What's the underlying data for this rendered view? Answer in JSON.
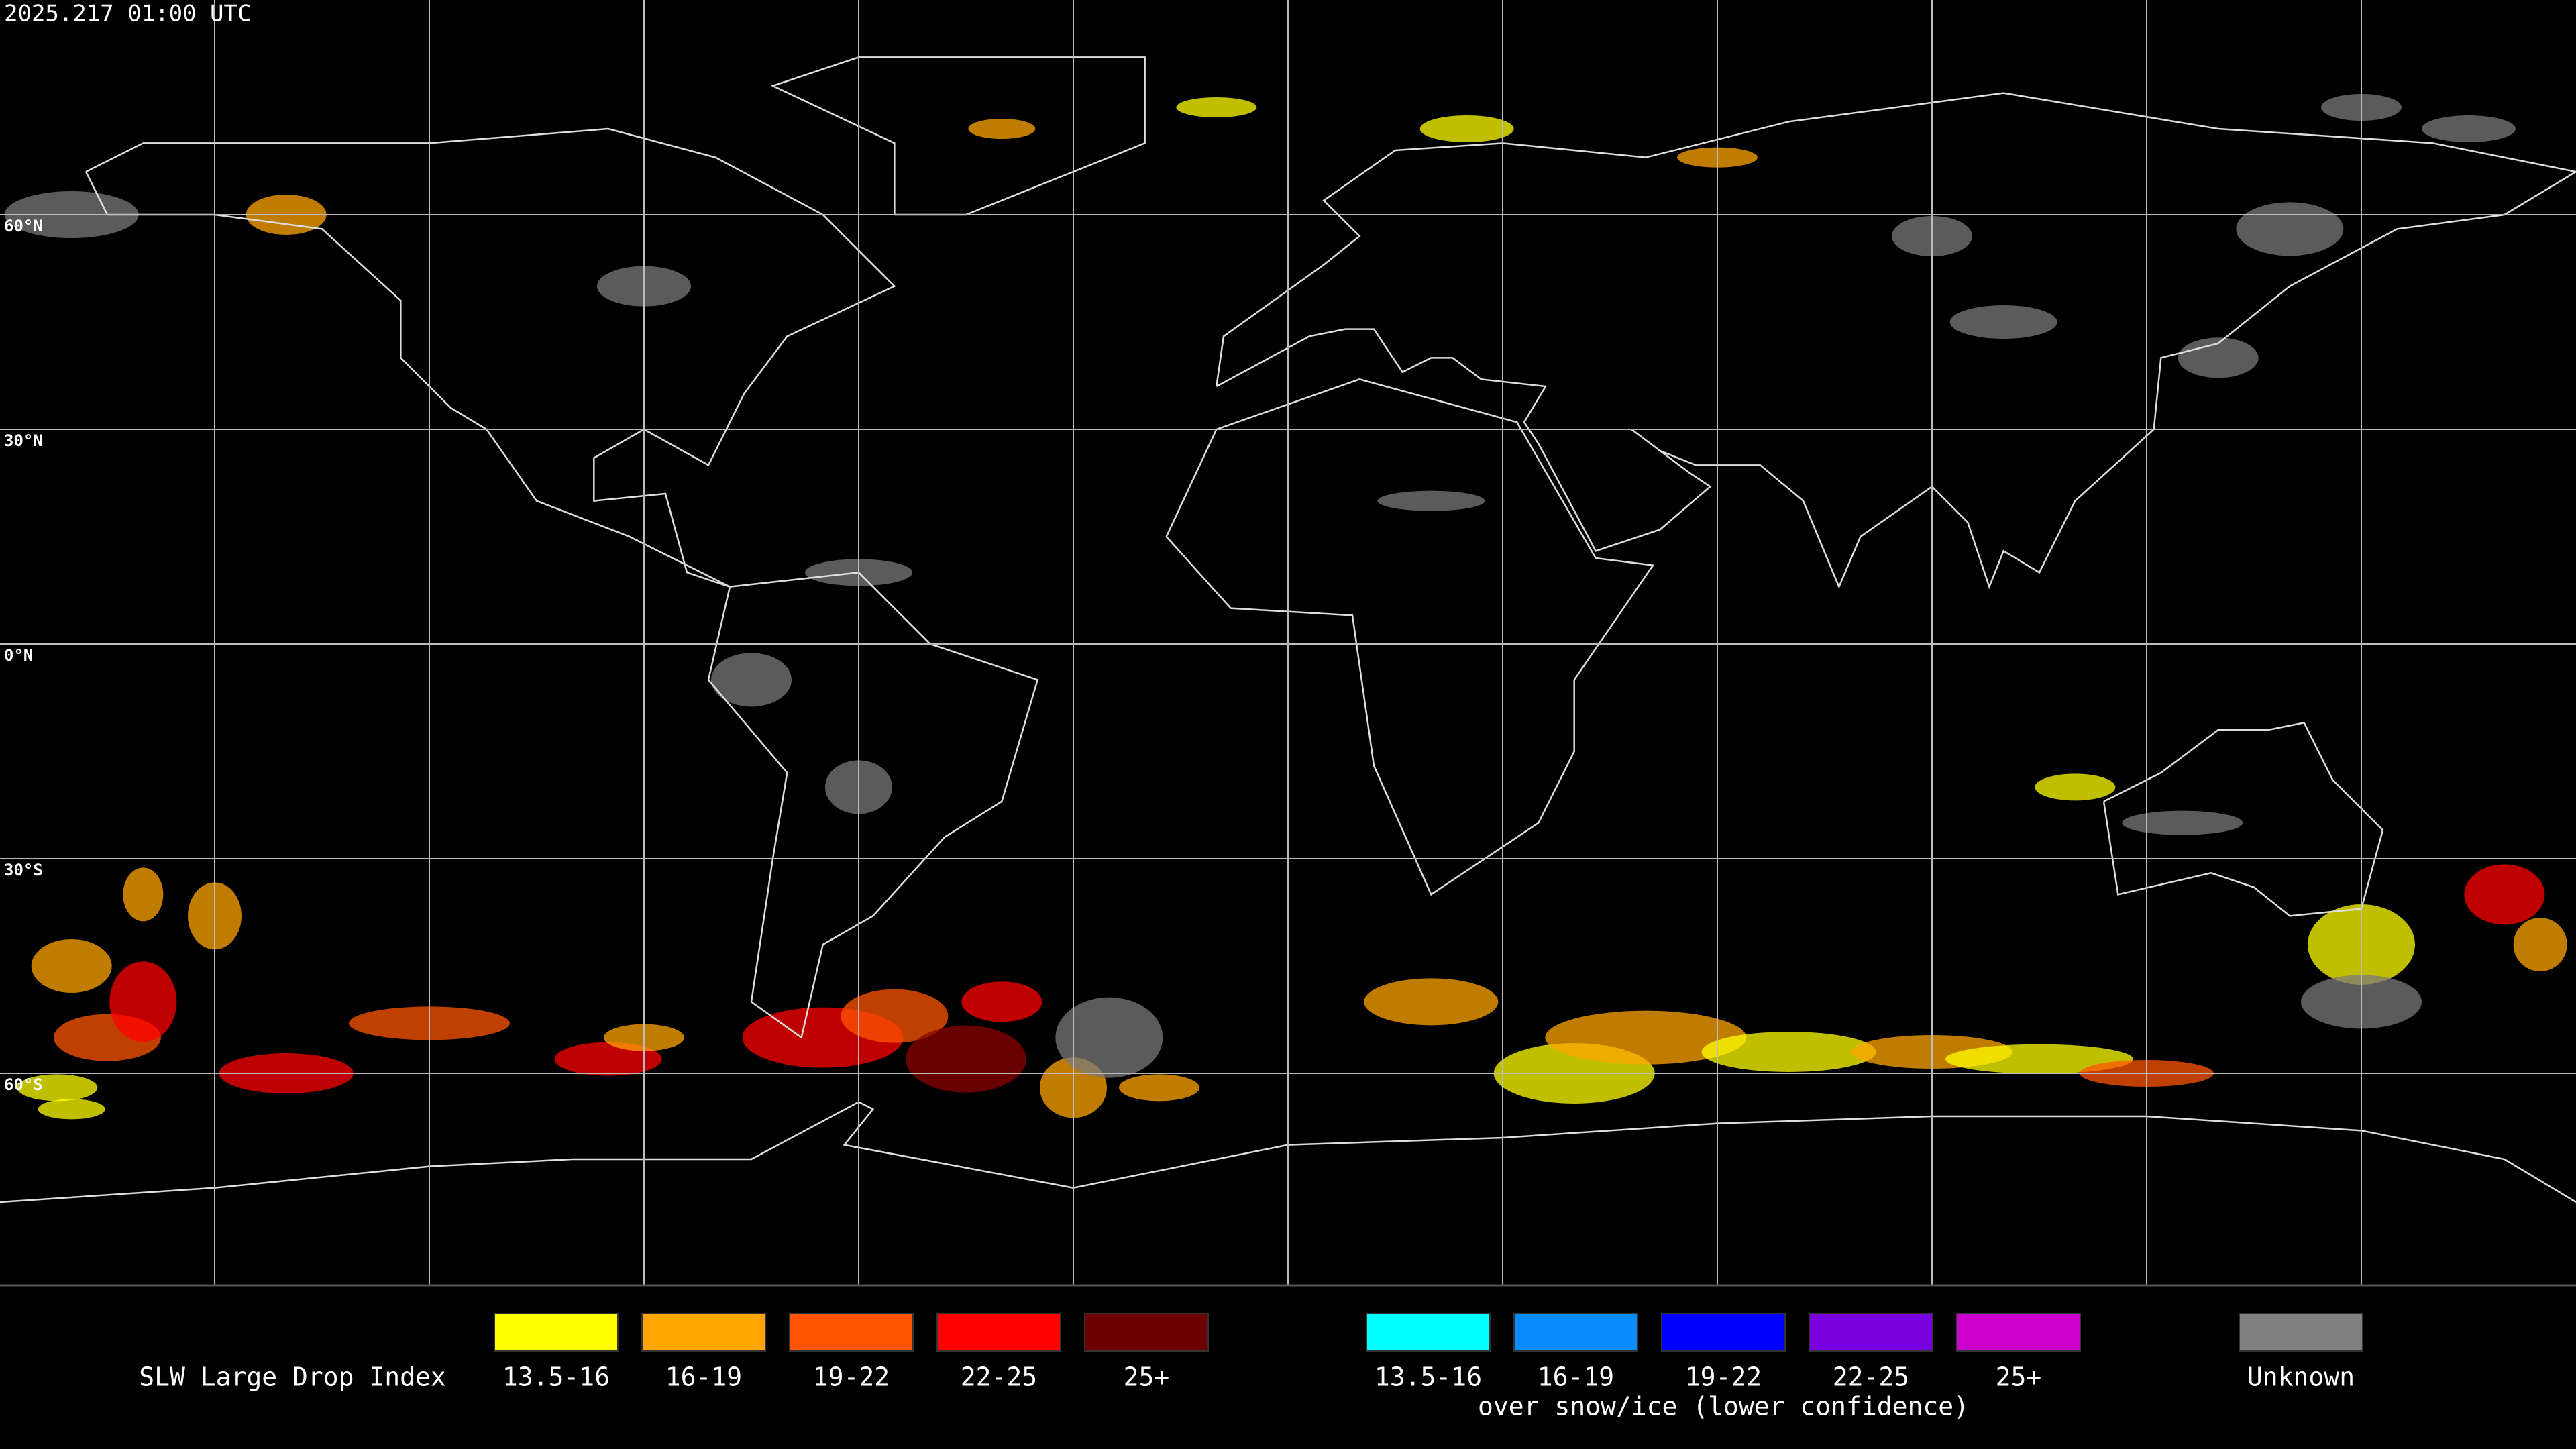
{
  "header": {
    "timestamp": "2025.217 01:00 UTC"
  },
  "map": {
    "latitude_labels": [
      "60°N",
      "30°N",
      "0°N",
      "30°S",
      "60°S"
    ]
  },
  "legend": {
    "title": "SLW Large Drop Index",
    "classes": [
      {
        "label": "13.5-16",
        "color": "#ffff00"
      },
      {
        "label": "16-19",
        "color": "#ffa500"
      },
      {
        "label": "19-22",
        "color": "#ff5500"
      },
      {
        "label": "22-25",
        "color": "#ff0000"
      },
      {
        "label": "25+",
        "color": "#6b0000"
      }
    ],
    "snow_ice_classes": [
      {
        "label": "13.5-16",
        "color": "#00ffff"
      },
      {
        "label": "16-19",
        "color": "#0a8cff"
      },
      {
        "label": "19-22",
        "color": "#0000ff"
      },
      {
        "label": "22-25",
        "color": "#7a00e0"
      },
      {
        "label": "25+",
        "color": "#cc00cc"
      }
    ],
    "snow_ice_caption": "over snow/ice (lower confidence)",
    "unknown": {
      "label": "Unknown",
      "color": "#808080"
    }
  }
}
